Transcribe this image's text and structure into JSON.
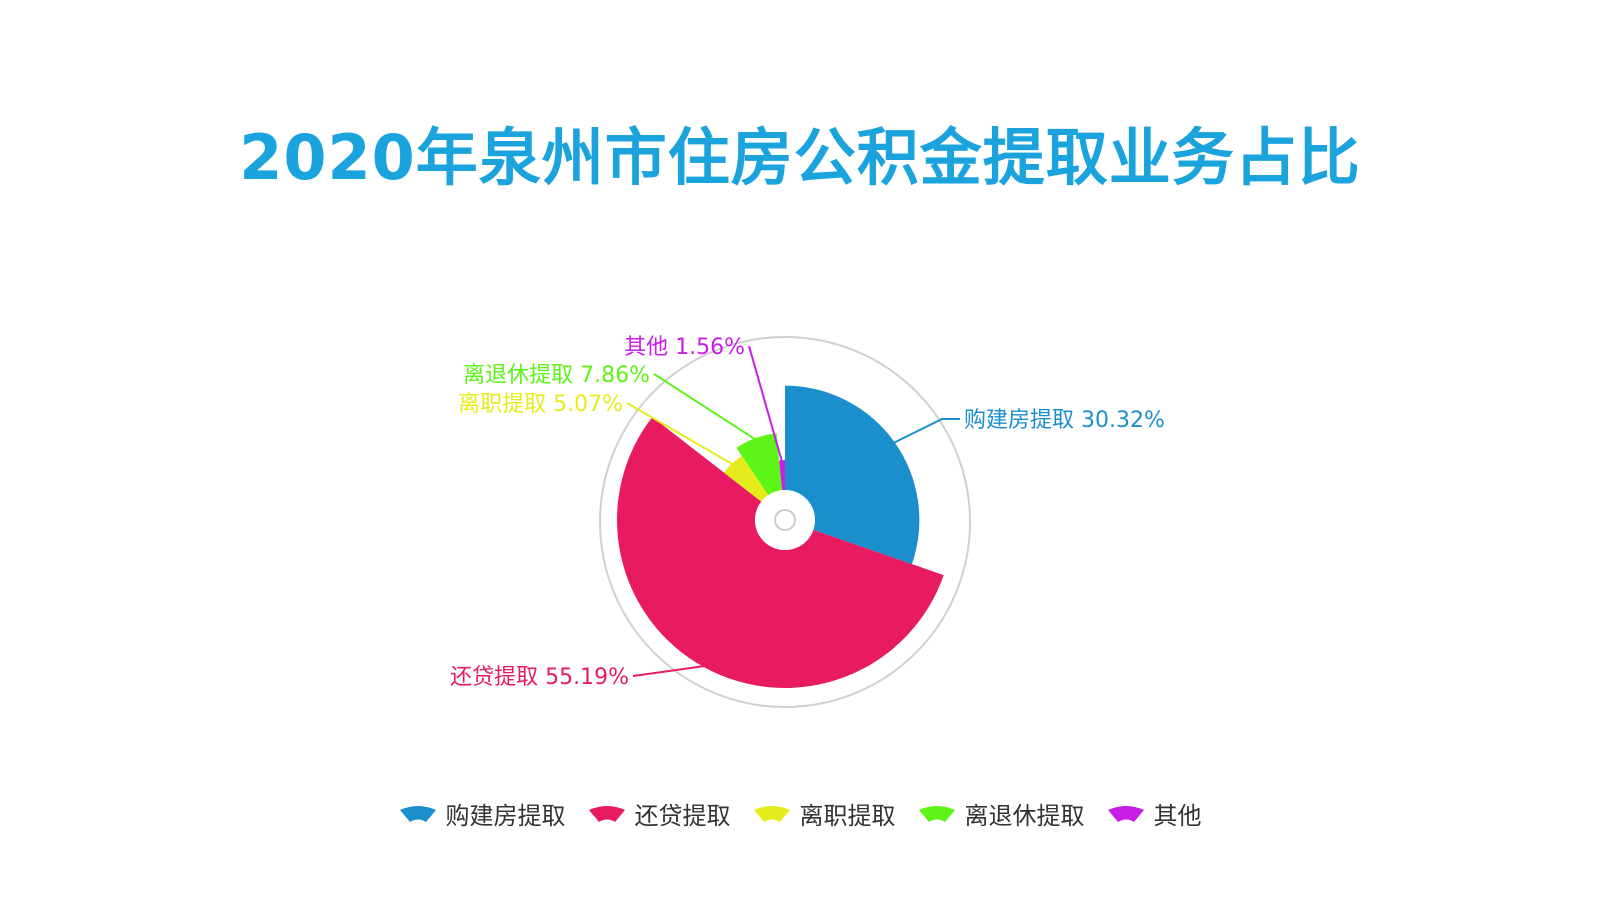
{
  "chart_data": {
    "type": "pie",
    "variant": "rose",
    "title": "2020年泉州市住房公积金提取业务占比",
    "legend_position": "bottom",
    "slices": [
      {
        "name": "购建房提取",
        "value": 30.32,
        "label": "购建房提取 30.32%",
        "color": "#1a8fcc"
      },
      {
        "name": "还贷提取",
        "value": 55.19,
        "label": "还贷提取 55.19%",
        "color": "#e81a62"
      },
      {
        "name": "离职提取",
        "value": 5.07,
        "label": "离职提取 5.07%",
        "color": "#e6ec1b"
      },
      {
        "name": "离退休提取",
        "value": 7.86,
        "label": "离退休提取 7.86%",
        "color": "#5df517"
      },
      {
        "name": "其他",
        "value": 1.56,
        "label": "其他 1.56%",
        "color": "#c81ee6"
      }
    ]
  }
}
